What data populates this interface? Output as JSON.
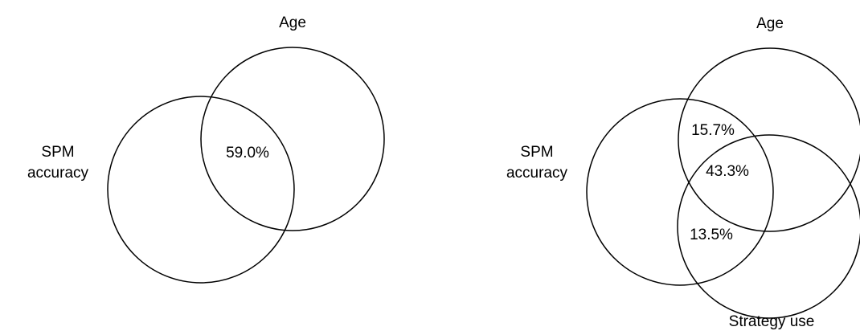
{
  "diagrams": [
    {
      "sets": [
        {
          "label_lines": [
            "SPM",
            "accuracy"
          ]
        },
        {
          "label_lines": [
            "Age"
          ]
        }
      ],
      "regions": [
        "59.0%"
      ]
    },
    {
      "sets": [
        {
          "label_lines": [
            "SPM",
            "accuracy"
          ]
        },
        {
          "label_lines": [
            "Age"
          ]
        },
        {
          "label_lines": [
            "Strategy use"
          ]
        }
      ],
      "regions": [
        "15.7%",
        "43.3%",
        "13.5%"
      ]
    }
  ]
}
